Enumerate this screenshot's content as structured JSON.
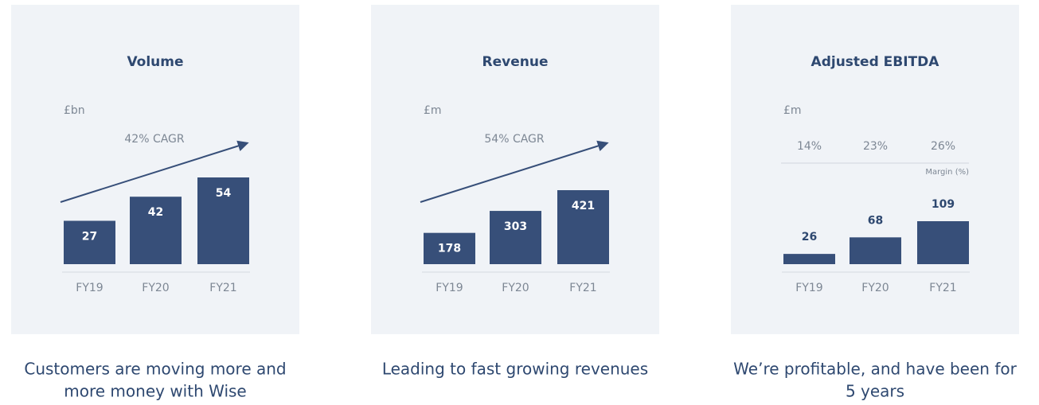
{
  "chart_data": [
    {
      "type": "bar",
      "title": "Volume",
      "unit": "£bn",
      "annotation": "42% CAGR",
      "categories": [
        "FY19",
        "FY20",
        "FY21"
      ],
      "values": [
        27,
        42,
        54
      ],
      "color": "#374f79",
      "caption": [
        "Customers are moving more and",
        "more money with Wise"
      ]
    },
    {
      "type": "bar",
      "title": "Revenue",
      "unit": "£m",
      "annotation": "54% CAGR",
      "categories": [
        "FY19",
        "FY20",
        "FY21"
      ],
      "values": [
        178,
        303,
        421
      ],
      "color": "#374f79",
      "caption": [
        "Leading to fast growing revenues"
      ]
    },
    {
      "type": "bar",
      "title": "Adjusted EBITDA",
      "unit": "£m",
      "categories": [
        "FY19",
        "FY20",
        "FY21"
      ],
      "values": [
        26,
        68,
        109
      ],
      "color": "#374f79",
      "margin": {
        "name": "Margin (%)",
        "values": [
          14,
          23,
          26
        ],
        "value_labels": [
          "14%",
          "23%",
          "26%"
        ]
      },
      "caption": [
        "We’re profitable, and have been for",
        "5 years"
      ]
    }
  ]
}
